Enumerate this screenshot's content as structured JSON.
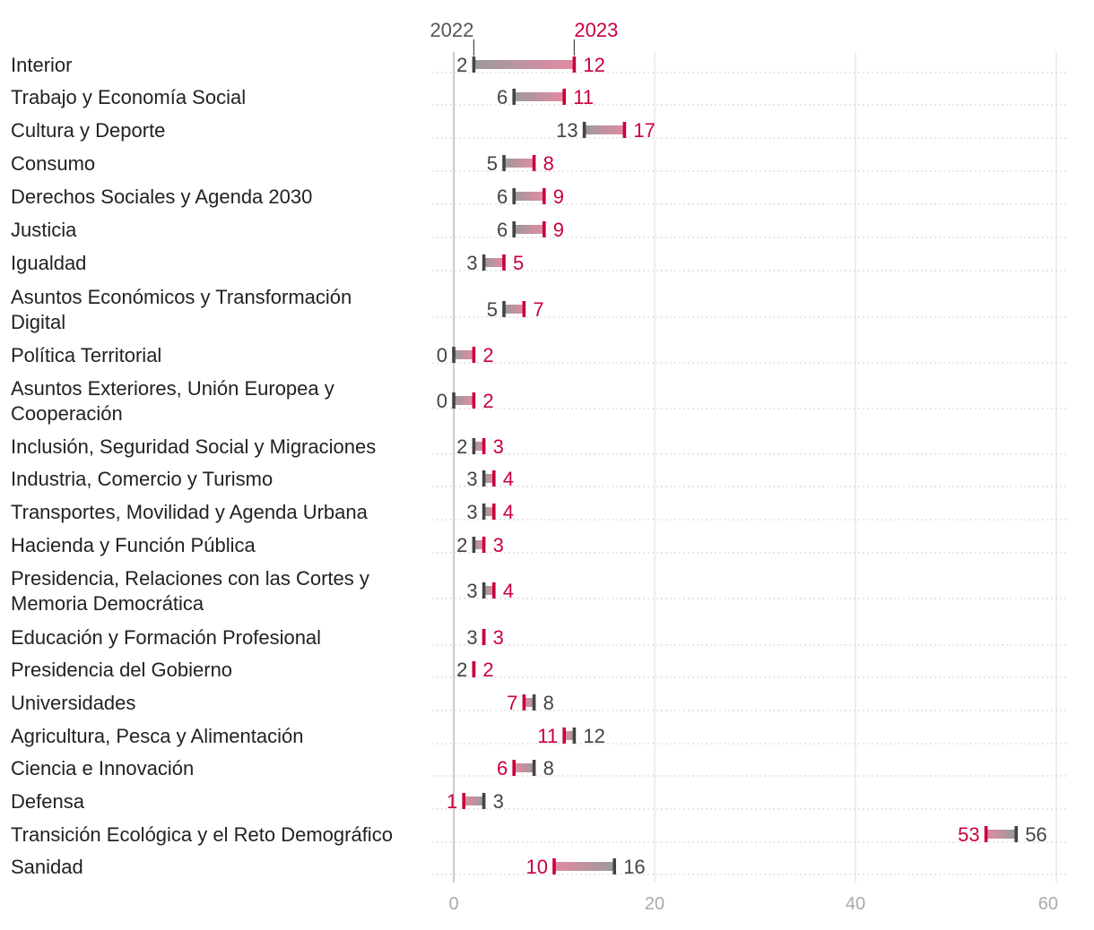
{
  "chart_data": {
    "type": "dumbbell",
    "title": "",
    "xlabel": "",
    "ylabel": "",
    "xlim": [
      0,
      60
    ],
    "x_ticks": [
      "0",
      "20",
      "40",
      "60"
    ],
    "series_names": [
      "2022",
      "2023"
    ],
    "colors": {
      "2022": "#444444",
      "2023": "#c8003c",
      "grid": "#dddddd",
      "category_text": "#222222",
      "tick_text": "#aaaaaa"
    },
    "rows": [
      {
        "category": "Interior",
        "v2022": 2,
        "v2023": 12,
        "label2022": "2",
        "label2023": "12"
      },
      {
        "category": "Trabajo y Economía Social",
        "v2022": 6,
        "v2023": 11,
        "label2022": "6",
        "label2023": "11"
      },
      {
        "category": "Cultura y Deporte",
        "v2022": 13,
        "v2023": 17,
        "label2022": "13",
        "label2023": "17"
      },
      {
        "category": "Consumo",
        "v2022": 5,
        "v2023": 8,
        "label2022": "5",
        "label2023": "8"
      },
      {
        "category": "Derechos Sociales y Agenda 2030",
        "v2022": 6,
        "v2023": 9,
        "label2022": "6",
        "label2023": "9"
      },
      {
        "category": "Justicia",
        "v2022": 6,
        "v2023": 9,
        "label2022": "6",
        "label2023": "9"
      },
      {
        "category": "Igualdad",
        "v2022": 3,
        "v2023": 5,
        "label2022": "3",
        "label2023": "5"
      },
      {
        "category": "Asuntos Económicos y Transformación Digital",
        "lines": [
          "Asuntos Económicos y Transformación",
          "Digital"
        ],
        "v2022": 5,
        "v2023": 7,
        "label2022": "5",
        "label2023": "7"
      },
      {
        "category": "Política Territorial",
        "v2022": 0,
        "v2023": 2,
        "label2022": "0",
        "label2023": "2"
      },
      {
        "category": "Asuntos Exteriores, Unión Europea y Cooperación",
        "lines": [
          "Asuntos Exteriores, Unión Europea y",
          "Cooperación"
        ],
        "v2022": 0,
        "v2023": 2,
        "label2022": "0",
        "label2023": "2"
      },
      {
        "category": "Inclusión, Seguridad Social y Migraciones",
        "v2022": 2,
        "v2023": 3,
        "label2022": "2",
        "label2023": "3"
      },
      {
        "category": "Industria, Comercio y Turismo",
        "v2022": 3,
        "v2023": 4,
        "label2022": "3",
        "label2023": "4"
      },
      {
        "category": "Transportes, Movilidad y Agenda Urbana",
        "v2022": 3,
        "v2023": 4,
        "label2022": "3",
        "label2023": "4"
      },
      {
        "category": "Hacienda y Función Pública",
        "v2022": 2,
        "v2023": 3,
        "label2022": "2",
        "label2023": "3"
      },
      {
        "category": "Presidencia, Relaciones con las Cortes y Memoria Democrática",
        "lines": [
          "Presidencia, Relaciones con las Cortes y",
          "Memoria Democrática"
        ],
        "v2022": 3,
        "v2023": 4,
        "label2022": "3",
        "label2023": "4"
      },
      {
        "category": "Educación y Formación Profesional",
        "v2022": 3,
        "v2023": 3,
        "label2022": "3",
        "label2023": "3"
      },
      {
        "category": "Presidencia del Gobierno",
        "v2022": 2,
        "v2023": 2,
        "label2022": "2",
        "label2023": "2"
      },
      {
        "category": "Universidades",
        "v2022": 8,
        "v2023": 7,
        "label2022": "8",
        "label2023": "7"
      },
      {
        "category": "Agricultura, Pesca y Alimentación",
        "v2022": 12,
        "v2023": 11,
        "label2022": "12",
        "label2023": "11"
      },
      {
        "category": "Ciencia e Innovación",
        "v2022": 8,
        "v2023": 6,
        "label2022": "8",
        "label2023": "6"
      },
      {
        "category": "Defensa",
        "v2022": 3,
        "v2023": 1,
        "label2022": "3",
        "label2023": "1"
      },
      {
        "category": "Transición Ecológica y el Reto Demográfico",
        "v2022": 56,
        "v2023": 53,
        "label2022": "56",
        "label2023": "53"
      },
      {
        "category": "Sanidad",
        "v2022": 16,
        "v2023": 10,
        "label2022": "16",
        "label2023": "10"
      }
    ]
  }
}
